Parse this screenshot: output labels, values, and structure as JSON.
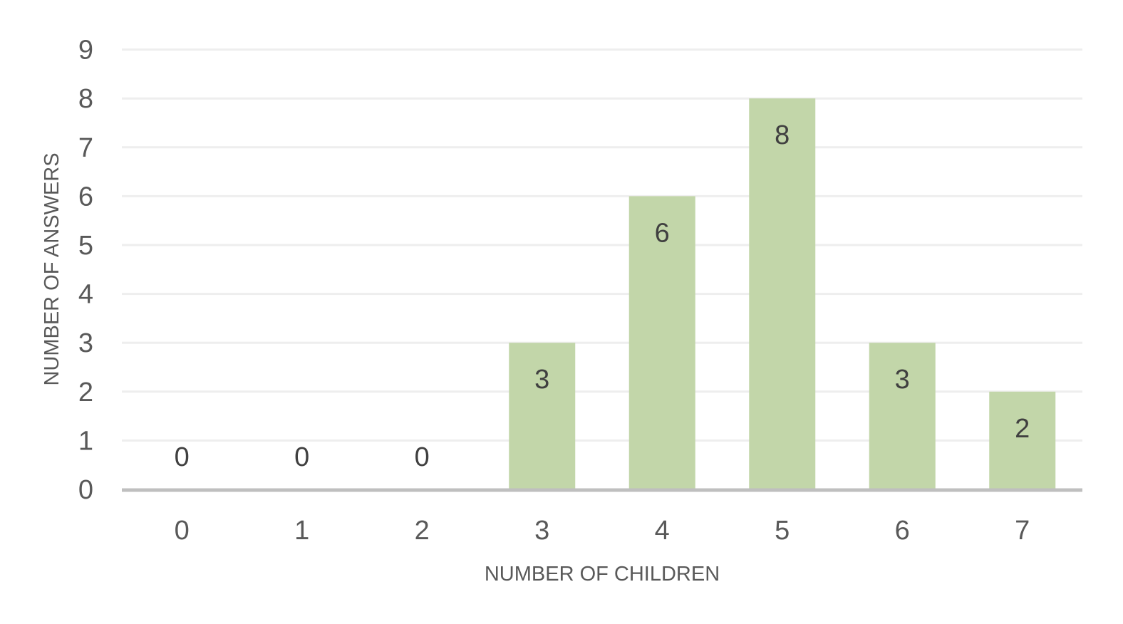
{
  "chart_data": {
    "type": "bar",
    "title": "",
    "xlabel": "NUMBER OF CHILDREN",
    "ylabel": "NUMBER OF ANSWERS",
    "categories": [
      "0",
      "1",
      "2",
      "3",
      "4",
      "5",
      "6",
      "7"
    ],
    "values": [
      0,
      0,
      0,
      3,
      6,
      8,
      3,
      2
    ],
    "data_labels": [
      "0",
      "0",
      "0",
      "3",
      "6",
      "8",
      "3",
      "2"
    ],
    "y_ticks": [
      "0",
      "1",
      "2",
      "3",
      "4",
      "5",
      "6",
      "7",
      "8",
      "9"
    ],
    "ylim": [
      0,
      9
    ],
    "grid": true,
    "legend": "none",
    "colors": {
      "bar": "#c2d6a9",
      "grid": "#eeeeee",
      "axis": "#bfbfbf",
      "tick_text": "#595959",
      "label_text": "#404040"
    }
  }
}
